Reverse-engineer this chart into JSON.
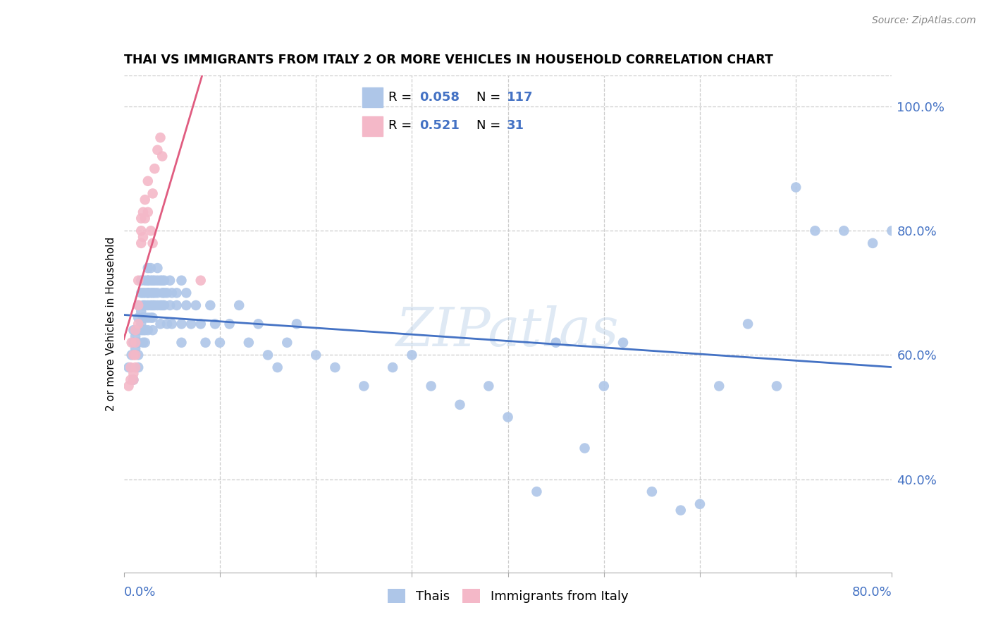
{
  "title": "THAI VS IMMIGRANTS FROM ITALY 2 OR MORE VEHICLES IN HOUSEHOLD CORRELATION CHART",
  "source": "Source: ZipAtlas.com",
  "ylabel": "2 or more Vehicles in Household",
  "xlim": [
    0.0,
    0.8
  ],
  "ylim": [
    0.25,
    1.05
  ],
  "yticks_right": [
    0.4,
    0.6,
    0.8,
    1.0
  ],
  "ytick_labels_right": [
    "40.0%",
    "60.0%",
    "80.0%",
    "100.0%"
  ],
  "legend_R1": "0.058",
  "legend_N1": "117",
  "legend_R2": "0.521",
  "legend_N2": "31",
  "color_thai": "#aec6e8",
  "color_italy": "#f4b8c8",
  "trendline_color_thai": "#4472c4",
  "trendline_color_italy": "#e05c80",
  "watermark": "ZIPatlas",
  "thai_x": [
    0.005,
    0.008,
    0.01,
    0.01,
    0.01,
    0.012,
    0.012,
    0.015,
    0.015,
    0.015,
    0.015,
    0.015,
    0.015,
    0.018,
    0.018,
    0.018,
    0.018,
    0.018,
    0.02,
    0.02,
    0.02,
    0.02,
    0.02,
    0.02,
    0.022,
    0.022,
    0.022,
    0.022,
    0.022,
    0.022,
    0.025,
    0.025,
    0.025,
    0.025,
    0.025,
    0.025,
    0.025,
    0.025,
    0.028,
    0.028,
    0.028,
    0.028,
    0.028,
    0.03,
    0.03,
    0.03,
    0.03,
    0.03,
    0.032,
    0.032,
    0.032,
    0.035,
    0.035,
    0.035,
    0.035,
    0.038,
    0.038,
    0.038,
    0.04,
    0.04,
    0.04,
    0.042,
    0.042,
    0.042,
    0.045,
    0.045,
    0.048,
    0.048,
    0.05,
    0.05,
    0.055,
    0.055,
    0.06,
    0.06,
    0.06,
    0.065,
    0.065,
    0.07,
    0.075,
    0.08,
    0.085,
    0.09,
    0.095,
    0.1,
    0.11,
    0.12,
    0.13,
    0.14,
    0.15,
    0.16,
    0.17,
    0.18,
    0.2,
    0.22,
    0.25,
    0.28,
    0.3,
    0.32,
    0.35,
    0.38,
    0.4,
    0.43,
    0.45,
    0.48,
    0.5,
    0.52,
    0.55,
    0.58,
    0.6,
    0.62,
    0.65,
    0.68,
    0.7,
    0.72,
    0.75,
    0.78,
    0.8
  ],
  "thai_y": [
    0.58,
    0.6,
    0.62,
    0.56,
    0.64,
    0.61,
    0.63,
    0.58,
    0.6,
    0.64,
    0.66,
    0.68,
    0.62,
    0.65,
    0.67,
    0.7,
    0.72,
    0.64,
    0.66,
    0.68,
    0.7,
    0.62,
    0.64,
    0.66,
    0.68,
    0.7,
    0.72,
    0.66,
    0.64,
    0.62,
    0.7,
    0.72,
    0.68,
    0.66,
    0.64,
    0.72,
    0.74,
    0.7,
    0.72,
    0.68,
    0.66,
    0.7,
    0.74,
    0.72,
    0.68,
    0.66,
    0.64,
    0.7,
    0.72,
    0.68,
    0.7,
    0.72,
    0.74,
    0.68,
    0.7,
    0.72,
    0.68,
    0.65,
    0.72,
    0.7,
    0.68,
    0.7,
    0.72,
    0.68,
    0.7,
    0.65,
    0.72,
    0.68,
    0.7,
    0.65,
    0.7,
    0.68,
    0.72,
    0.65,
    0.62,
    0.7,
    0.68,
    0.65,
    0.68,
    0.65,
    0.62,
    0.68,
    0.65,
    0.62,
    0.65,
    0.68,
    0.62,
    0.65,
    0.6,
    0.58,
    0.62,
    0.65,
    0.6,
    0.58,
    0.55,
    0.58,
    0.6,
    0.55,
    0.52,
    0.55,
    0.5,
    0.38,
    0.62,
    0.45,
    0.55,
    0.62,
    0.38,
    0.35,
    0.36,
    0.55,
    0.65,
    0.55,
    0.87,
    0.8,
    0.8,
    0.78,
    0.8
  ],
  "italy_x": [
    0.005,
    0.007,
    0.007,
    0.008,
    0.01,
    0.01,
    0.01,
    0.012,
    0.012,
    0.012,
    0.012,
    0.015,
    0.015,
    0.015,
    0.018,
    0.018,
    0.018,
    0.02,
    0.02,
    0.022,
    0.022,
    0.025,
    0.025,
    0.028,
    0.03,
    0.03,
    0.032,
    0.035,
    0.038,
    0.04,
    0.08
  ],
  "italy_y": [
    0.55,
    0.58,
    0.56,
    0.62,
    0.57,
    0.6,
    0.56,
    0.62,
    0.64,
    0.6,
    0.58,
    0.65,
    0.68,
    0.72,
    0.78,
    0.8,
    0.82,
    0.83,
    0.79,
    0.85,
    0.82,
    0.88,
    0.83,
    0.8,
    0.86,
    0.78,
    0.9,
    0.93,
    0.95,
    0.92,
    0.72
  ]
}
